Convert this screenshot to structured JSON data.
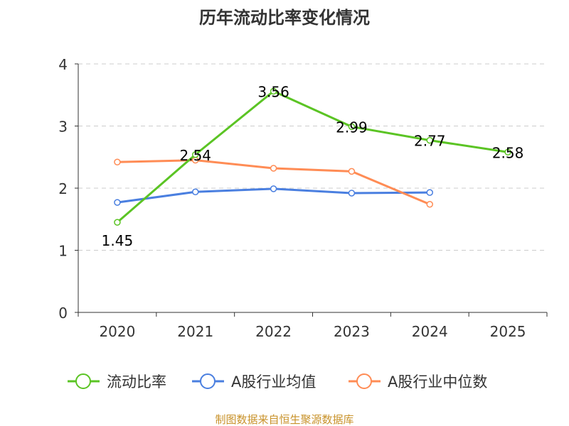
{
  "chart_data": {
    "type": "line",
    "title": "历年流动比率变化情况",
    "categories": [
      "2020",
      "2021",
      "2022",
      "2023",
      "2024",
      "2025"
    ],
    "y_ticks": [
      "0",
      "1",
      "2",
      "3",
      "4"
    ],
    "ylim": [
      0,
      4
    ],
    "grid": true,
    "legend_position": "bottom",
    "series": [
      {
        "name": "流动比率",
        "color": "#5bc424",
        "values": [
          1.45,
          2.54,
          3.56,
          2.99,
          2.77,
          2.58
        ],
        "labels": [
          "1.45",
          "2.54",
          "3.56",
          "2.99",
          "2.77",
          "2.58"
        ]
      },
      {
        "name": "A股行业均值",
        "color": "#4a7fe0",
        "values": [
          1.77,
          1.94,
          1.99,
          1.92,
          1.93,
          null
        ]
      },
      {
        "name": "A股行业中位数",
        "color": "#ff8c55",
        "values": [
          2.42,
          2.45,
          2.32,
          2.27,
          1.74,
          null
        ]
      }
    ],
    "source": "制图数据来自恒生聚源数据库"
  }
}
